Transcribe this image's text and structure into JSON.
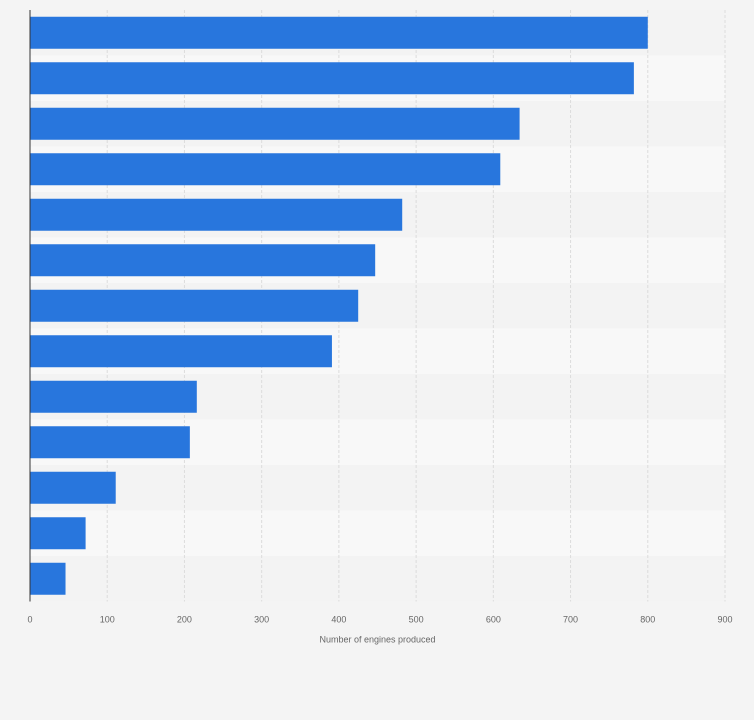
{
  "chart_data": {
    "type": "bar",
    "orientation": "horizontal",
    "title": "",
    "xlabel": "Number of engines produced",
    "ylabel": "",
    "xlim": [
      0,
      900
    ],
    "x_ticks": [
      0,
      100,
      200,
      300,
      400,
      500,
      600,
      700,
      800,
      900
    ],
    "x_tick_labels": [
      "0",
      "100",
      "200",
      "300",
      "400",
      "500",
      "600",
      "700",
      "800",
      "900"
    ],
    "values": [
      800,
      782,
      634,
      609,
      482,
      447,
      425,
      391,
      216,
      207,
      111,
      72,
      46
    ],
    "grid": true,
    "legend": "none"
  },
  "colors": {
    "bar": "#2876dd",
    "background": "#f4f4f4",
    "band_light": "#f8f8f8",
    "band_dark": "#f3f3f3",
    "grid": "#dcdcdc",
    "axis": "#333333",
    "tick_text": "#666666"
  }
}
